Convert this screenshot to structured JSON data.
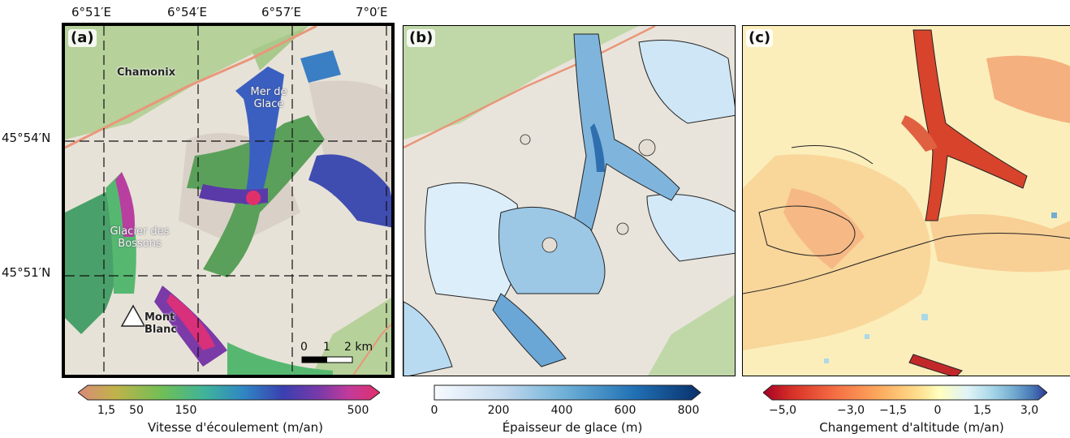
{
  "panel_a": {
    "label": "(a)",
    "top_coords": [
      "6°51′E",
      "6°54′E",
      "6°57′E",
      "7°0′E"
    ],
    "left_coords": [
      "45°54′N",
      "45°51′N"
    ],
    "places": {
      "chamonix": "Chamonix",
      "mer_de_glace": "Mer de Glace",
      "glacier_bossons": "Glacier des Bossons",
      "mont_blanc": "Mont Blanc"
    },
    "scalebar": {
      "ticks": [
        "0",
        "1",
        "2 km"
      ]
    },
    "colorbar": {
      "label": "Vitesse d'écoulement (m/an)",
      "ticks": [
        "1,5",
        "50",
        "150",
        "500"
      ],
      "colors": [
        "#d98a7a",
        "#c2b24a",
        "#6fbf56",
        "#3fb39a",
        "#2f86c4",
        "#3a3fb0",
        "#7a3aa8",
        "#c43a9a",
        "#e0306a"
      ]
    }
  },
  "panel_b": {
    "label": "(b)",
    "colorbar": {
      "label": "Épaisseur de glace (m)",
      "ticks": [
        "0",
        "200",
        "400",
        "600",
        "800"
      ],
      "colors": [
        "#f7fbff",
        "#c6dbef",
        "#6baed6",
        "#2171b5",
        "#08306b"
      ]
    }
  },
  "panel_c": {
    "label": "(c)",
    "colorbar": {
      "label": "Changement d'altitude (m/an)",
      "ticks": [
        "−5,0",
        "−3,0",
        "−1,5",
        "0",
        "1,5",
        "3,0"
      ],
      "colors": [
        "#a50026",
        "#d73027",
        "#f46d43",
        "#fdae61",
        "#fee090",
        "#ffffbf",
        "#e0f3f8",
        "#abd9e9",
        "#74add1",
        "#4575b4",
        "#313695"
      ]
    }
  }
}
